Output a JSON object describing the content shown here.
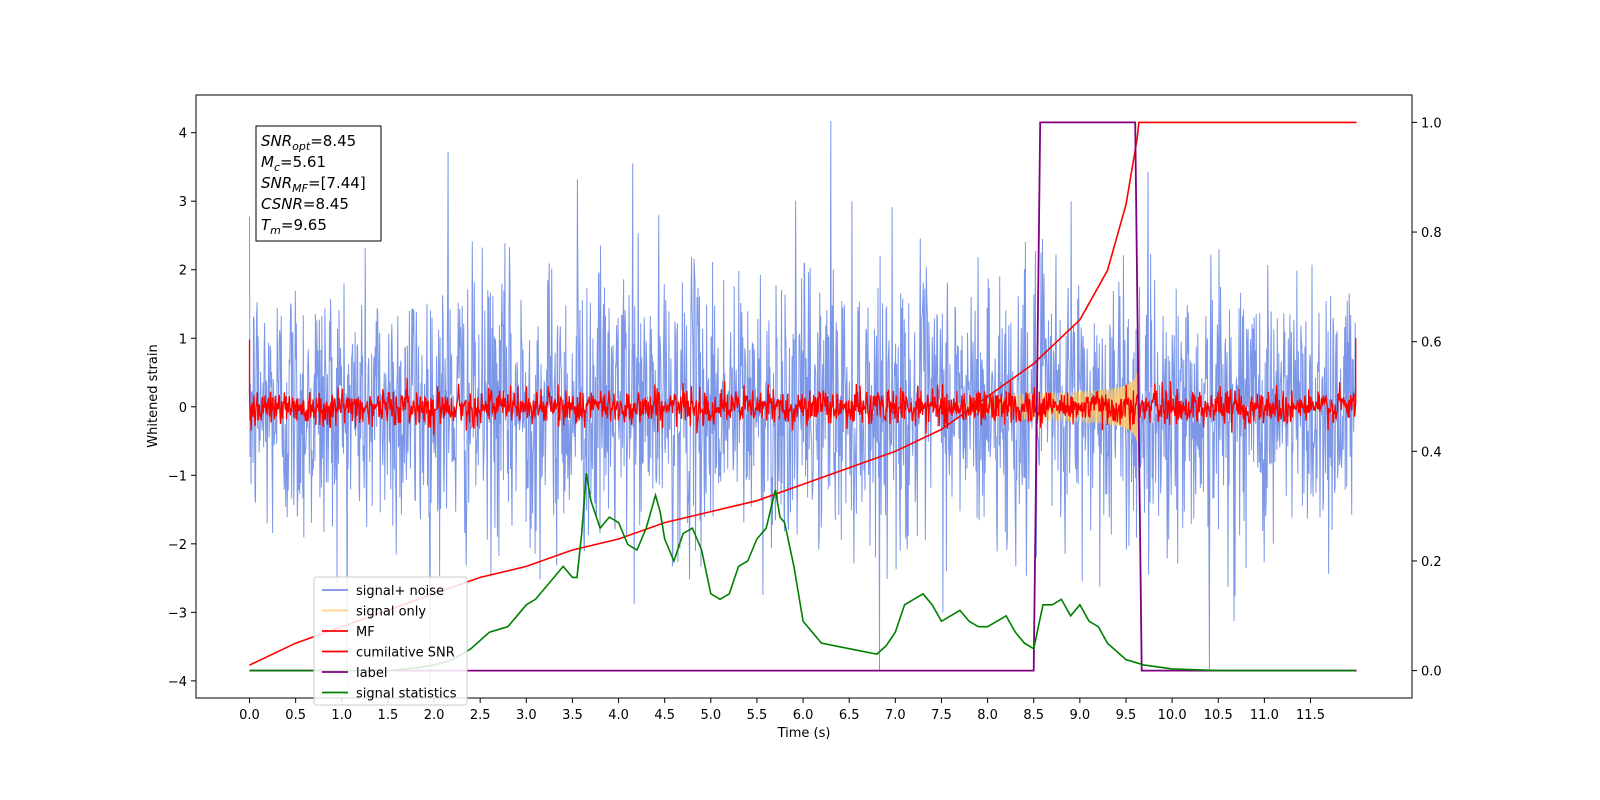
{
  "chart_data": {
    "type": "line",
    "title": "",
    "xlabel": "Time (s)",
    "ylabel": "Whitened strain",
    "y2label": "",
    "xlim": [
      -0.58,
      12.6
    ],
    "ylim": [
      -4.25,
      4.55
    ],
    "y2lim": [
      -0.05,
      1.05
    ],
    "xticks": [
      "0.0",
      "0.5",
      "1.0",
      "1.5",
      "2.0",
      "2.5",
      "3.0",
      "3.5",
      "4.0",
      "4.5",
      "5.0",
      "5.5",
      "6.0",
      "6.5",
      "7.0",
      "7.5",
      "8.0",
      "8.5",
      "9.0",
      "9.5",
      "10.0",
      "10.5",
      "11.0",
      "11.5"
    ],
    "yticks": [
      "4",
      "3",
      "2",
      "1",
      "0",
      "−1",
      "−2",
      "−3",
      "−4"
    ],
    "y2ticks": [
      "1.0",
      "0.8",
      "0.6",
      "0.4",
      "0.2",
      "0.0"
    ],
    "grid": false,
    "legend_position": "lower-left",
    "annotation": {
      "lines": [
        {
          "sym": "SNR",
          "sub": "opt",
          "value": "=8.45"
        },
        {
          "sym": "M",
          "sub": "c",
          "value": "=5.61"
        },
        {
          "sym": "SNR",
          "sub": "MF",
          "value": "=[7.44]"
        },
        {
          "sym": "CSNR",
          "sub": "",
          "value": "=8.45"
        },
        {
          "sym": "T",
          "sub": "m",
          "value": "=9.65"
        }
      ]
    },
    "series": [
      {
        "name": "signal+ noise",
        "axis": "left",
        "color": "#7591e6",
        "kind": "noise_band",
        "x_range": [
          0.0,
          11.99
        ],
        "mean": 0.0,
        "std": 1.0,
        "peaks": [
          [
            6.3,
            4.17
          ],
          [
            2.15,
            3.72
          ],
          [
            4.15,
            3.55
          ],
          [
            3.55,
            3.32
          ],
          [
            8.9,
            3.0
          ],
          [
            10.4,
            -3.83
          ]
        ]
      },
      {
        "name": "signal only",
        "axis": "left",
        "color": "#ffc966",
        "kind": "chirp",
        "x_range": [
          7.5,
          9.62
        ],
        "amplitude_max": 0.52
      },
      {
        "name": "MF",
        "axis": "left",
        "color": "#ff0000",
        "kind": "noise_band",
        "x_range": [
          0.0,
          11.99
        ],
        "mean": 0.0,
        "std": 0.13,
        "edges": [
          [
            0.0,
            0.98
          ],
          [
            11.99,
            1.0
          ]
        ]
      },
      {
        "name": "cumilative SNR",
        "axis": "right",
        "color": "#ff0000",
        "kind": "line",
        "x": [
          0.0,
          0.5,
          1.0,
          1.5,
          2.0,
          2.5,
          3.0,
          3.5,
          4.0,
          4.5,
          5.0,
          5.5,
          6.0,
          6.5,
          7.0,
          7.5,
          8.0,
          8.5,
          9.0,
          9.3,
          9.5,
          9.62,
          9.64,
          12.0
        ],
        "y": [
          0.01,
          0.05,
          0.08,
          0.11,
          0.14,
          0.17,
          0.19,
          0.22,
          0.24,
          0.27,
          0.29,
          0.31,
          0.34,
          0.37,
          0.4,
          0.44,
          0.5,
          0.56,
          0.64,
          0.73,
          0.85,
          0.97,
          1.0,
          1.0
        ]
      },
      {
        "name": "label",
        "axis": "right",
        "color": "#800080",
        "kind": "line",
        "x": [
          0.0,
          8.5,
          8.57,
          9.6,
          9.67,
          12.0
        ],
        "y": [
          0.0,
          0.0,
          1.0,
          1.0,
          0.0,
          0.0
        ]
      },
      {
        "name": "signal statistics",
        "axis": "right",
        "color": "#008000",
        "kind": "line",
        "x": [
          0.0,
          1.0,
          1.5,
          1.8,
          2.0,
          2.2,
          2.4,
          2.6,
          2.8,
          2.9,
          3.0,
          3.1,
          3.2,
          3.3,
          3.4,
          3.5,
          3.55,
          3.6,
          3.65,
          3.7,
          3.8,
          3.9,
          4.0,
          4.1,
          4.2,
          4.3,
          4.4,
          4.45,
          4.5,
          4.6,
          4.7,
          4.8,
          4.9,
          5.0,
          5.1,
          5.2,
          5.3,
          5.4,
          5.5,
          5.6,
          5.7,
          5.75,
          5.8,
          5.9,
          6.0,
          6.2,
          6.5,
          6.8,
          6.9,
          7.0,
          7.1,
          7.2,
          7.3,
          7.4,
          7.5,
          7.6,
          7.7,
          7.8,
          7.9,
          8.0,
          8.1,
          8.2,
          8.3,
          8.4,
          8.5,
          8.6,
          8.7,
          8.8,
          8.9,
          9.0,
          9.1,
          9.2,
          9.3,
          9.5,
          9.7,
          10.0,
          10.5,
          11.0,
          11.99
        ],
        "y": [
          0.0,
          0.0,
          0.0,
          0.005,
          0.01,
          0.02,
          0.04,
          0.07,
          0.08,
          0.1,
          0.12,
          0.13,
          0.15,
          0.17,
          0.19,
          0.17,
          0.17,
          0.25,
          0.36,
          0.31,
          0.26,
          0.28,
          0.27,
          0.23,
          0.22,
          0.26,
          0.32,
          0.29,
          0.24,
          0.2,
          0.25,
          0.26,
          0.22,
          0.14,
          0.13,
          0.14,
          0.19,
          0.2,
          0.24,
          0.26,
          0.33,
          0.28,
          0.27,
          0.19,
          0.09,
          0.05,
          0.04,
          0.03,
          0.045,
          0.07,
          0.12,
          0.13,
          0.14,
          0.12,
          0.09,
          0.1,
          0.11,
          0.09,
          0.08,
          0.08,
          0.09,
          0.1,
          0.07,
          0.05,
          0.04,
          0.12,
          0.12,
          0.13,
          0.1,
          0.12,
          0.09,
          0.08,
          0.05,
          0.02,
          0.01,
          0.003,
          0.0,
          0.0,
          0.0
        ]
      }
    ]
  }
}
